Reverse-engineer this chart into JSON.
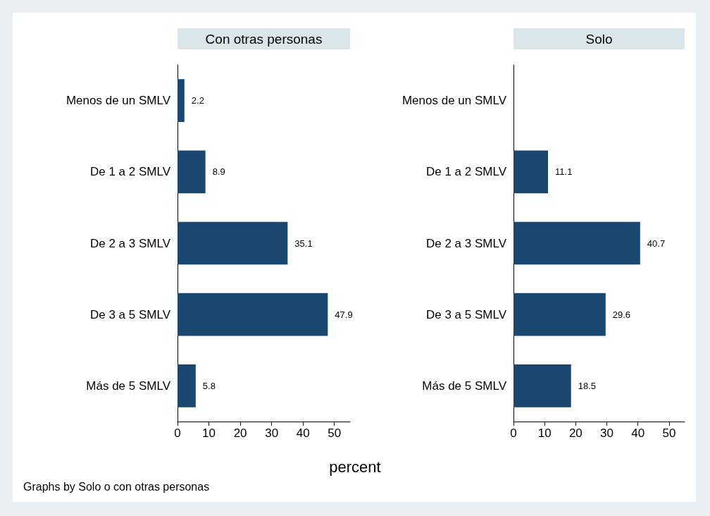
{
  "chart_data": [
    {
      "type": "bar",
      "orientation": "horizontal",
      "title": "Con otras personas",
      "xlabel": "percent",
      "annotations": [
        "Graphs by Solo o con otras personas"
      ],
      "categories": [
        "Menos de un SMLV",
        "De 1 a 2 SMLV",
        "De 2 a 3 SMLV",
        "De 3 a 5 SMLV",
        "Más de 5 SMLV"
      ],
      "values": [
        2.2,
        8.9,
        35.1,
        47.9,
        5.8
      ],
      "color": "#1a476f",
      "xlim": [
        0,
        55
      ],
      "xticks": [
        0,
        10,
        20,
        30,
        40,
        50
      ],
      "data_labels": true
    },
    {
      "type": "bar",
      "orientation": "horizontal",
      "title": "Solo",
      "categories": [
        "Menos de un SMLV",
        "De 1 a 2 SMLV",
        "De 2 a 3 SMLV",
        "De 3 a 5 SMLV",
        "Más de 5 SMLV"
      ],
      "values": [
        null,
        11.1,
        40.7,
        29.6,
        18.5
      ],
      "color": "#1a476f",
      "xlim": [
        0,
        55
      ],
      "xticks": [
        0,
        10,
        20,
        30,
        40,
        50
      ],
      "data_labels": true
    }
  ]
}
